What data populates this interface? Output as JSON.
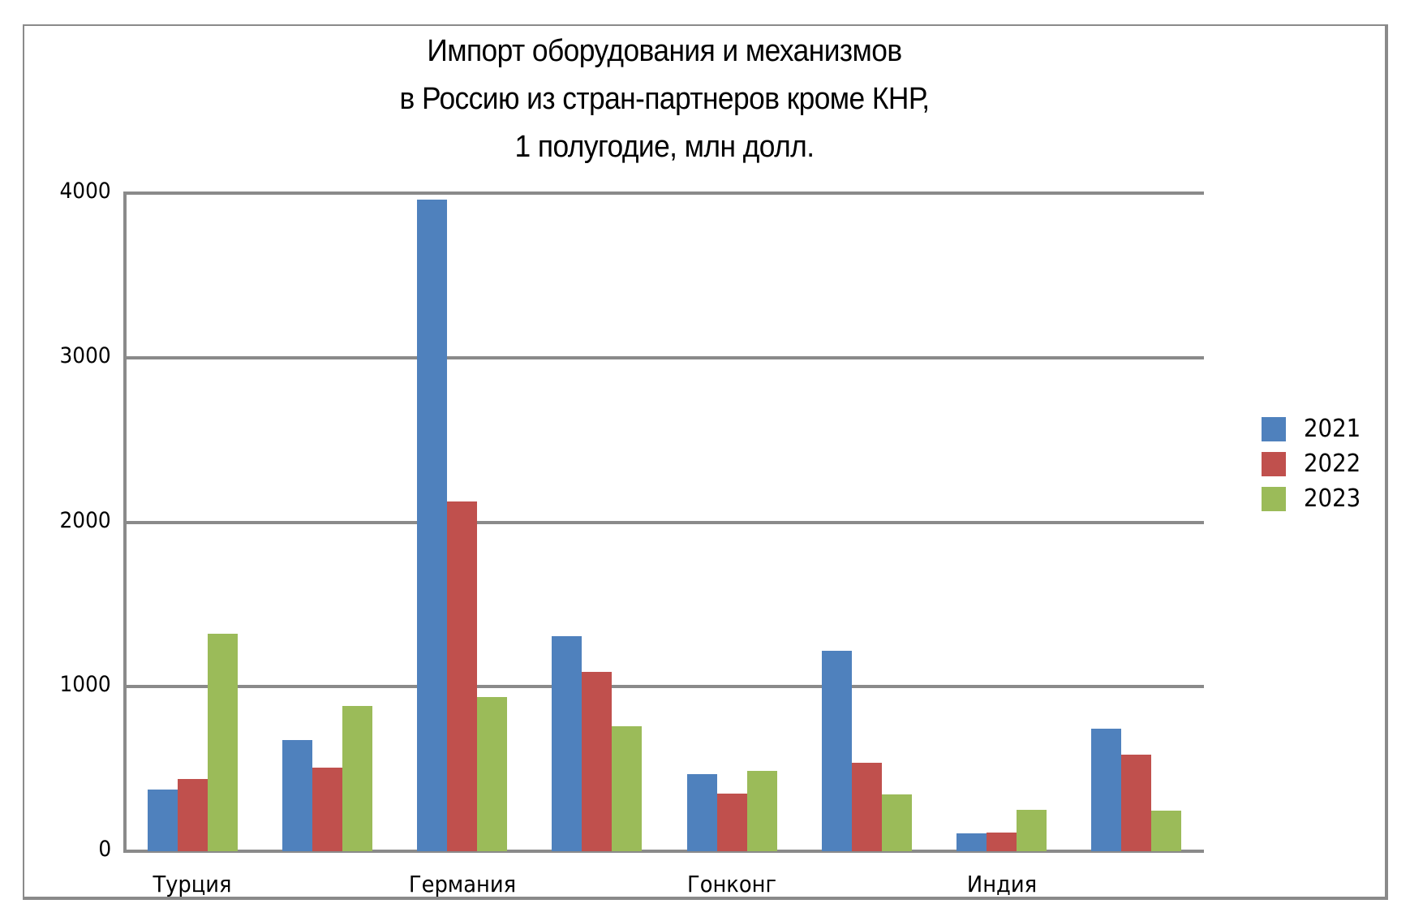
{
  "chart_data": {
    "type": "bar",
    "title": "Импорт оборудования и механизмов в Россию из стран-партнеров кроме КНР, 1 полугодие, млн долл.",
    "title_lines": [
      "Импорт оборудования и механизмов",
      "в Россию из стран-партнеров кроме КНР,",
      "1 полугодие, млн долл."
    ],
    "xlabel": "",
    "ylabel": "",
    "ylim": [
      0,
      4000
    ],
    "yticks": [
      "0",
      "1000",
      "2000",
      "3000",
      "4000"
    ],
    "ytick_values": [
      0,
      1000,
      2000,
      3000,
      4000
    ],
    "grid": true,
    "legend_position": "right",
    "categories": [
      "Турция",
      "",
      "Германия",
      "",
      "Гонконг",
      "",
      "Индия",
      ""
    ],
    "series": [
      {
        "name": "2021",
        "color": "#4f81bd",
        "values": [
          373,
          675,
          3960,
          1307,
          469,
          1216,
          110,
          746
        ]
      },
      {
        "name": "2022",
        "color": "#c0504d",
        "values": [
          438,
          507,
          2126,
          1090,
          350,
          539,
          115,
          588
        ]
      },
      {
        "name": "2023",
        "color": "#9bbb59",
        "values": [
          1320,
          882,
          937,
          760,
          489,
          347,
          253,
          248
        ]
      }
    ]
  },
  "legend": {
    "items": [
      {
        "label": "2021",
        "color": "#4f81bd"
      },
      {
        "label": "2022",
        "color": "#c0504d"
      },
      {
        "label": "2023",
        "color": "#9bbb59"
      }
    ]
  },
  "colors": {
    "axis": "#8a8a8a",
    "background": "#ffffff"
  }
}
